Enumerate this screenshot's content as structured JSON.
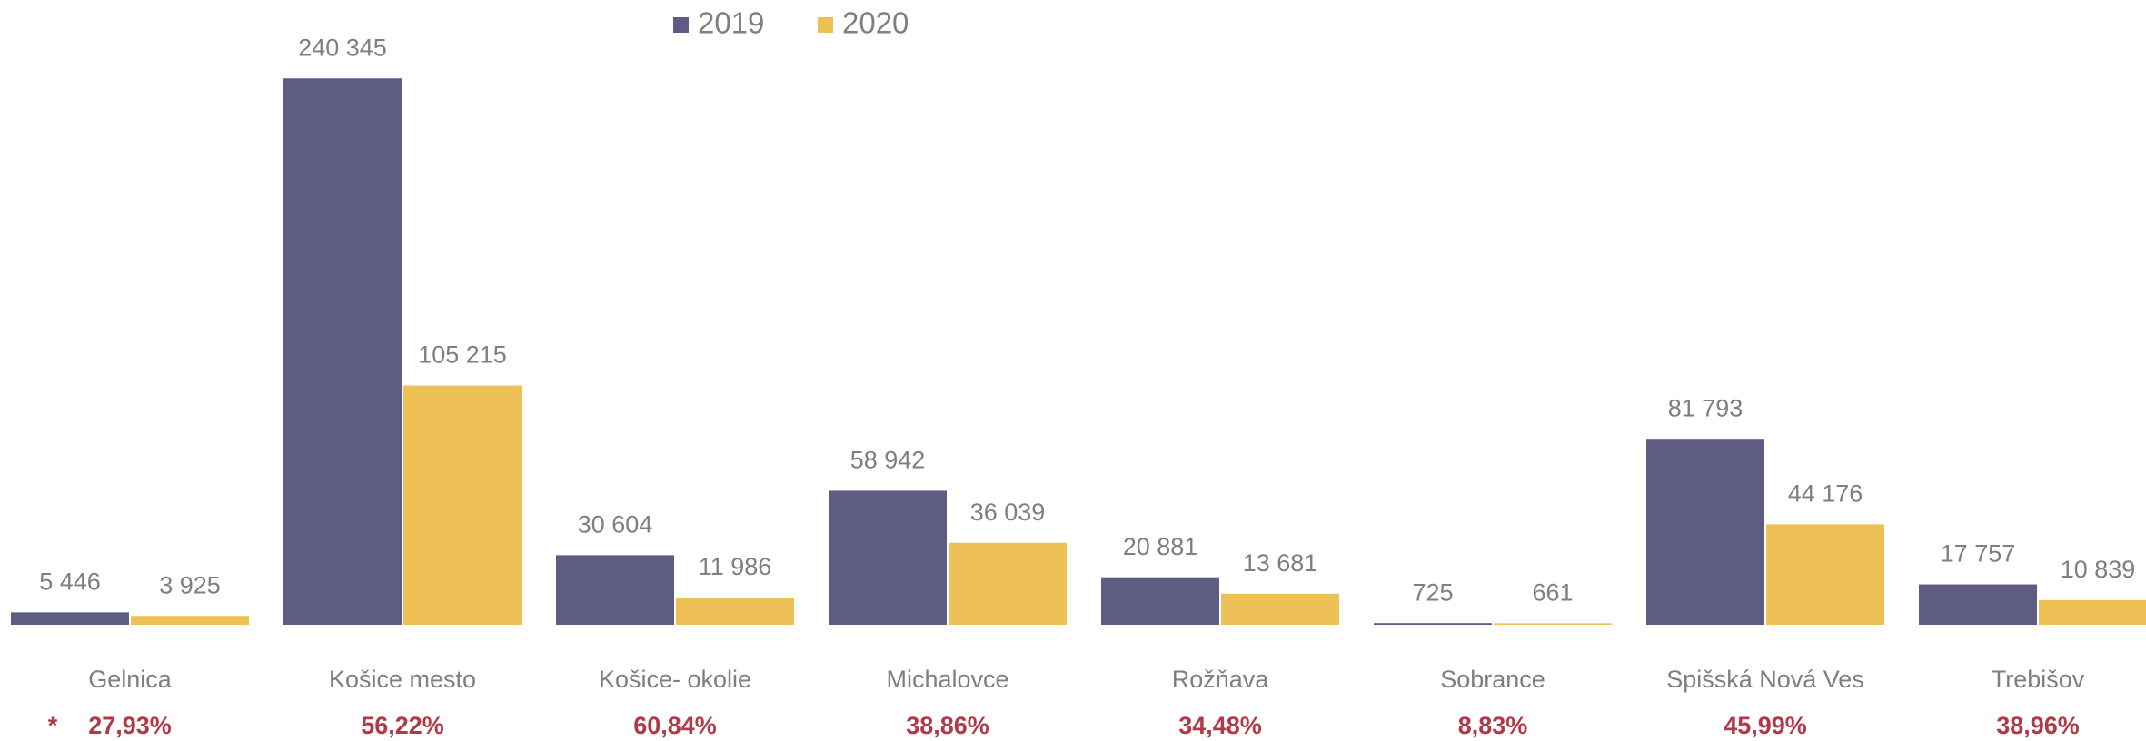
{
  "chart_data": {
    "type": "bar",
    "categories": [
      "Gelnica",
      "Košice mesto",
      "Košice- okolie",
      "Michalovce",
      "Rožňava",
      "Sobrance",
      "Spišská Nová Ves",
      "Trebišov"
    ],
    "series": [
      {
        "name": "2019",
        "color": "#5e5c82",
        "values": [
          5446,
          240345,
          30604,
          58942,
          20881,
          725,
          81793,
          17757
        ],
        "value_labels": [
          "5 446",
          "240 345",
          "30 604",
          "58 942",
          "20 881",
          "725",
          "81 793",
          "17 757"
        ]
      },
      {
        "name": "2020",
        "color": "#eec157",
        "values": [
          3925,
          105215,
          11986,
          36039,
          13681,
          661,
          44176,
          10839
        ],
        "value_labels": [
          "3 925",
          "105 215",
          "11 986",
          "36 039",
          "13 681",
          "661",
          "44 176",
          "10 839"
        ]
      }
    ],
    "change_labels": [
      "27,93%",
      "56,22%",
      "60,84%",
      "38,86%",
      "34,48%",
      "8,83%",
      "45,99%",
      "38,96%"
    ],
    "note_marker": "*",
    "ylim": [
      0,
      262000
    ],
    "legend": "top"
  }
}
